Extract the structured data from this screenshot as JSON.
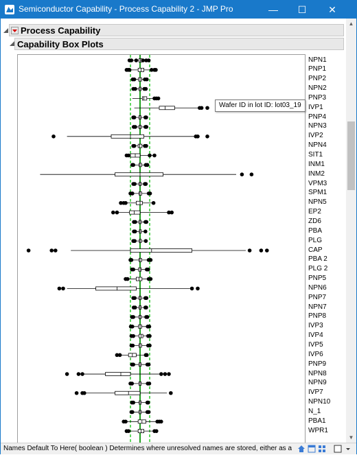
{
  "window": {
    "title": "Semiconductor Capability - Process Capability 2 - JMP Pro",
    "min_glyph": "—",
    "max_glyph": "☐",
    "close_glyph": "✕"
  },
  "report": {
    "outline_title": "Process Capability",
    "sub_outline_title": "Capability Box Plots"
  },
  "tooltip": {
    "text": "Wafer ID in lot ID: lot03_19"
  },
  "status": {
    "text": "Names Default To Here( boolean )  Determines where unresolved names are stored, either as a g"
  },
  "colors": {
    "spec_line": "#2ecc2e",
    "center_line": "#1fa01f",
    "title_bar": "#1979ca",
    "point": "#000000"
  },
  "chart_data": {
    "type": "box",
    "orientation": "horizontal",
    "xlim": [
      -4,
      4
    ],
    "spec_lines": [
      -0.5,
      0.5
    ],
    "center_line": 0,
    "categories": [
      "NPN1",
      "PNP1",
      "PNP2",
      "NPN2",
      "PNP3",
      "IVP1",
      "PNP4",
      "NPN3",
      "IVP2",
      "NPN4",
      "SIT1",
      "INM1",
      "INM2",
      "VPM3",
      "SPM1",
      "NPN5",
      "EP2",
      "ZD6",
      "PBA",
      "PLG",
      "CAP",
      "PBA 2",
      "PLG 2",
      "PNP5",
      "NPN6",
      "PNP7",
      "NPN7",
      "PNP8",
      "IVP3",
      "IVP4",
      "IVP5",
      "IVP6",
      "PNP9",
      "NPN8",
      "NPN9",
      "IVP7",
      "NPN10",
      "N_1",
      "PBA1",
      "WPR1"
    ],
    "boxes": [
      {
        "wl": -0.5,
        "q1": -0.06,
        "med": 0.02,
        "q3": 0.1,
        "wh": 0.4,
        "out": [
          -0.55,
          -0.45,
          -0.2,
          0.15,
          0.32,
          0.45
        ]
      },
      {
        "wl": -0.6,
        "q1": -0.1,
        "med": 0.05,
        "q3": 0.2,
        "wh": 0.7,
        "out": [
          -0.7,
          -0.62,
          -0.55,
          0.6,
          0.75,
          0.82
        ]
      },
      {
        "wl": -0.35,
        "q1": -0.08,
        "med": 0.0,
        "q3": 0.08,
        "wh": 0.3,
        "out": [
          -0.38,
          -0.3,
          0.25,
          0.35
        ]
      },
      {
        "wl": -0.35,
        "q1": -0.06,
        "med": 0.0,
        "q3": 0.06,
        "wh": 0.3,
        "out": [
          -0.35,
          -0.25,
          0.22,
          0.3
        ]
      },
      {
        "wl": -0.4,
        "q1": 0.12,
        "med": 0.2,
        "q3": 0.35,
        "wh": 0.8,
        "out": [
          0.75,
          0.85,
          0.95
        ]
      },
      {
        "wl": -0.3,
        "q1": 1.0,
        "med": 1.3,
        "q3": 1.8,
        "wh": 3.0,
        "out": [
          3.1,
          3.5,
          3.2
        ]
      },
      {
        "wl": -0.35,
        "q1": -0.06,
        "med": 0.0,
        "q3": 0.05,
        "wh": 0.3,
        "out": [
          -0.35,
          -0.3,
          0.28,
          0.32
        ]
      },
      {
        "wl": -0.35,
        "q1": -0.06,
        "med": 0.0,
        "q3": 0.06,
        "wh": 0.3,
        "out": [
          -0.33,
          -0.25,
          0.28,
          0.33
        ]
      },
      {
        "wl": -3.8,
        "q1": -1.5,
        "med": -0.5,
        "q3": 0.2,
        "wh": 2.8,
        "out": [
          -4.5,
          2.9,
          3.0,
          3.5
        ]
      },
      {
        "wl": -0.3,
        "q1": -0.1,
        "med": -0.02,
        "q3": 0.1,
        "wh": 0.3,
        "out": [
          -0.35,
          -0.3,
          0.25,
          0.32
        ]
      },
      {
        "wl": -0.7,
        "q1": -0.5,
        "med": -0.25,
        "q3": 0.0,
        "wh": 0.8,
        "out": [
          -0.7,
          -0.6,
          0.5,
          0.75
        ]
      },
      {
        "wl": -0.4,
        "q1": -0.05,
        "med": 0.0,
        "q3": 0.08,
        "wh": 0.4,
        "out": [
          -0.4,
          -0.35,
          0.3,
          0.38
        ]
      },
      {
        "wl": -5.2,
        "q1": -1.3,
        "med": 0.0,
        "q3": 1.2,
        "wh": 5.0,
        "out": [
          5.3,
          5.8
        ]
      },
      {
        "wl": -0.35,
        "q1": -0.05,
        "med": 0.0,
        "q3": 0.05,
        "wh": 0.3,
        "out": [
          -0.35,
          -0.28,
          0.25,
          0.3
        ]
      },
      {
        "wl": -0.4,
        "q1": -0.05,
        "med": 0.0,
        "q3": 0.08,
        "wh": 0.5,
        "out": [
          -0.5,
          -0.4,
          0.45,
          0.52
        ]
      },
      {
        "wl": -0.7,
        "q1": -0.2,
        "med": 0.0,
        "q3": 0.12,
        "wh": 0.7,
        "out": [
          -1.0,
          -0.85,
          -0.75,
          0.7
        ]
      },
      {
        "wl": -1.3,
        "q1": -0.55,
        "med": -0.3,
        "q3": 0.0,
        "wh": 1.5,
        "out": [
          -1.4,
          -1.2,
          1.5,
          1.65
        ]
      },
      {
        "wl": -0.3,
        "q1": -0.06,
        "med": 0.0,
        "q3": 0.06,
        "wh": 0.3,
        "out": [
          -0.32,
          -0.25,
          0.28,
          0.33
        ]
      },
      {
        "wl": -0.3,
        "q1": -0.04,
        "med": 0.0,
        "q3": 0.05,
        "wh": 0.3,
        "out": [
          -0.32,
          -0.26,
          0.28
        ]
      },
      {
        "wl": -0.35,
        "q1": -0.04,
        "med": 0.0,
        "q3": 0.05,
        "wh": 0.3,
        "out": [
          -0.35,
          -0.28,
          0.3
        ]
      },
      {
        "wl": -3.6,
        "q1": -0.5,
        "med": 0.6,
        "q3": 2.7,
        "wh": 5.5,
        "out": [
          -5.8,
          -4.6,
          -4.4,
          5.7,
          6.3,
          6.6
        ]
      },
      {
        "wl": -0.4,
        "q1": -0.05,
        "med": 0.0,
        "q3": 0.08,
        "wh": 0.5,
        "out": [
          -0.5,
          -0.45,
          0.45,
          0.55
        ]
      },
      {
        "wl": -0.4,
        "q1": -0.08,
        "med": 0.0,
        "q3": 0.06,
        "wh": 0.4,
        "out": [
          -0.42,
          -0.35,
          0.35,
          0.42
        ]
      },
      {
        "wl": -0.7,
        "q1": -0.2,
        "med": -0.05,
        "q3": 0.1,
        "wh": 0.5,
        "out": [
          -0.75,
          -0.65,
          0.45,
          0.55
        ]
      },
      {
        "wl": -3.8,
        "q1": -2.3,
        "med": -1.2,
        "q3": -0.2,
        "wh": 2.6,
        "out": [
          -4.2,
          -4.0,
          2.7,
          3.0
        ]
      },
      {
        "wl": -0.35,
        "q1": -0.06,
        "med": 0.0,
        "q3": 0.06,
        "wh": 0.3,
        "out": [
          -0.35,
          -0.28,
          0.28,
          0.33
        ]
      },
      {
        "wl": -0.35,
        "q1": -0.05,
        "med": 0.0,
        "q3": 0.05,
        "wh": 0.3,
        "out": [
          -0.33,
          -0.26,
          0.28,
          0.32
        ]
      },
      {
        "wl": -0.4,
        "q1": -0.06,
        "med": 0.0,
        "q3": 0.06,
        "wh": 0.35,
        "out": [
          -0.42,
          -0.35,
          0.32,
          0.38
        ]
      },
      {
        "wl": -0.45,
        "q1": -0.08,
        "med": 0.0,
        "q3": 0.08,
        "wh": 0.45,
        "out": [
          -0.48,
          -0.4,
          0.4,
          0.48
        ]
      },
      {
        "wl": -0.4,
        "q1": -0.06,
        "med": 0.05,
        "q3": 0.15,
        "wh": 0.45,
        "out": [
          -0.45,
          -0.35,
          0.42,
          0.5
        ]
      },
      {
        "wl": -0.4,
        "q1": -0.06,
        "med": 0.0,
        "q3": 0.08,
        "wh": 0.45,
        "out": [
          -0.45,
          -0.38,
          0.42,
          0.5
        ]
      },
      {
        "wl": -1.0,
        "q1": -0.6,
        "med": -0.4,
        "q3": -0.2,
        "wh": 0.3,
        "out": [
          -1.2,
          -1.05,
          0.3,
          0.35
        ]
      },
      {
        "wl": -0.4,
        "q1": -0.06,
        "med": 0.0,
        "q3": 0.06,
        "wh": 0.4,
        "out": [
          -0.42,
          -0.35,
          0.38,
          0.45
        ]
      },
      {
        "wl": -3.0,
        "q1": -1.8,
        "med": -1.0,
        "q3": -0.5,
        "wh": 1.0,
        "out": [
          -3.8,
          -3.2,
          -3.0,
          1.1,
          1.3,
          1.5
        ]
      },
      {
        "wl": -0.45,
        "q1": -0.06,
        "med": 0.0,
        "q3": 0.06,
        "wh": 0.45,
        "out": [
          -0.5,
          -0.42,
          0.4,
          0.48
        ]
      },
      {
        "wl": -2.8,
        "q1": -1.3,
        "med": -0.6,
        "q3": 0.0,
        "wh": 1.4,
        "out": [
          -3.3,
          -3.0,
          -2.9,
          1.6
        ]
      },
      {
        "wl": -0.4,
        "q1": -0.05,
        "med": 0.0,
        "q3": 0.05,
        "wh": 0.4,
        "out": [
          -0.42,
          -0.35,
          0.38,
          0.42
        ]
      },
      {
        "wl": -0.4,
        "q1": -0.06,
        "med": 0.0,
        "q3": 0.06,
        "wh": 0.4,
        "out": [
          -0.45,
          -0.4,
          0.38,
          0.45
        ]
      },
      {
        "wl": -0.8,
        "q1": -0.1,
        "med": 0.1,
        "q3": 0.3,
        "wh": 1.0,
        "out": [
          -0.85,
          -0.75,
          0.9,
          1.0,
          1.1
        ]
      },
      {
        "wl": -0.6,
        "q1": -0.1,
        "med": 0.05,
        "q3": 0.2,
        "wh": 0.8,
        "out": [
          -0.7,
          -0.6,
          0.75,
          0.85
        ]
      }
    ]
  }
}
